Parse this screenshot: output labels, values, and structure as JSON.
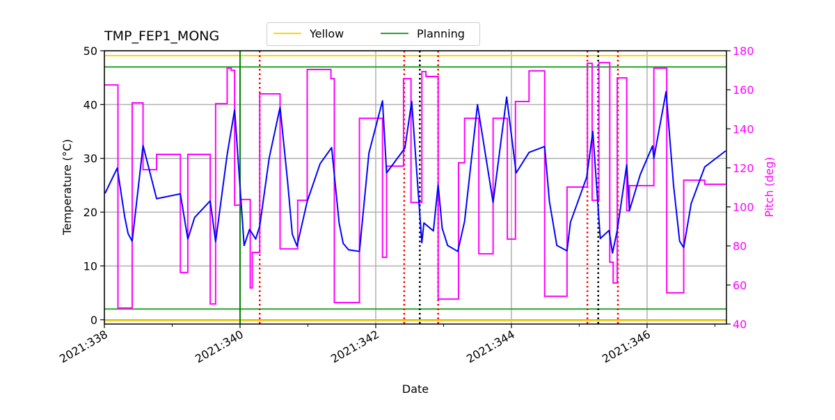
{
  "chart_data": {
    "type": "line",
    "title": "TMP_FEP1_MONG",
    "xlabel": "Date",
    "ylabel": "Temperature (°C)",
    "y2label": "Pitch (deg)",
    "xlim": [
      338.0,
      347.17
    ],
    "ylim": [
      -0.8,
      50
    ],
    "y2lim": [
      40,
      180
    ],
    "xticks": [
      338,
      340,
      342,
      344,
      346
    ],
    "xtick_labels": [
      "2021:338",
      "2021:340",
      "2021:342",
      "2021:344",
      "2021:346"
    ],
    "xminor_ticks": [
      339,
      341,
      343,
      345,
      347
    ],
    "yticks": [
      0,
      10,
      20,
      30,
      40,
      50
    ],
    "ytick_labels": [
      "0",
      "10",
      "20",
      "30",
      "40",
      "50"
    ],
    "y2ticks": [
      40,
      60,
      80,
      100,
      120,
      140,
      160,
      180
    ],
    "y2tick_labels": [
      "40",
      "60",
      "80",
      "100",
      "120",
      "140",
      "160",
      "180"
    ],
    "grid": true,
    "legend": {
      "placement": "top-center",
      "entries": [
        {
          "label": "Yellow",
          "color": "#ffd700"
        },
        {
          "label": "Planning",
          "color": "#2ca02c"
        }
      ]
    },
    "limits": {
      "yellow": [
        49.1,
        -0.2
      ],
      "planning": [
        47.0,
        2.0
      ]
    },
    "colors": {
      "temperature": "#0000ff",
      "pitch": "#ff00ff",
      "yellow": "#ffd700",
      "planning": "#2ca02c",
      "now_line": "#008000",
      "red_events": "#ff0000",
      "black_events": "#000000",
      "grid": "#b0b0b0"
    },
    "now_line_x": 340.0,
    "red_event_lines_x": [
      340.29,
      342.42,
      342.92,
      345.12,
      345.57
    ],
    "black_event_lines_x": [
      342.65,
      345.28
    ],
    "temperature_series": [
      [
        338.01,
        23.5
      ],
      [
        338.19,
        28.2
      ],
      [
        338.3,
        19.1
      ],
      [
        338.35,
        16.0
      ],
      [
        338.41,
        14.6
      ],
      [
        338.57,
        32.4
      ],
      [
        338.77,
        22.5
      ],
      [
        339.12,
        23.4
      ],
      [
        339.23,
        15.0
      ],
      [
        339.33,
        19.0
      ],
      [
        339.56,
        22.1
      ],
      [
        339.64,
        14.5
      ],
      [
        339.81,
        30.7
      ],
      [
        339.92,
        39.0
      ],
      [
        340.06,
        13.8
      ],
      [
        340.14,
        16.8
      ],
      [
        340.23,
        15.0
      ],
      [
        340.29,
        17.4
      ],
      [
        340.43,
        30.1
      ],
      [
        340.59,
        39.5
      ],
      [
        340.7,
        25.8
      ],
      [
        340.77,
        15.9
      ],
      [
        340.84,
        13.7
      ],
      [
        340.99,
        22.0
      ],
      [
        341.18,
        29.0
      ],
      [
        341.35,
        32.0
      ],
      [
        341.46,
        18.0
      ],
      [
        341.52,
        14.2
      ],
      [
        341.6,
        13.0
      ],
      [
        341.76,
        12.7
      ],
      [
        341.9,
        31.0
      ],
      [
        342.1,
        40.7
      ],
      [
        342.16,
        27.3
      ],
      [
        342.43,
        31.9
      ],
      [
        342.53,
        40.6
      ],
      [
        342.68,
        14.3
      ],
      [
        342.71,
        18.0
      ],
      [
        342.85,
        16.5
      ],
      [
        342.92,
        25.1
      ],
      [
        342.98,
        17.0
      ],
      [
        343.06,
        13.8
      ],
      [
        343.21,
        12.7
      ],
      [
        343.31,
        18.3
      ],
      [
        343.5,
        40.0
      ],
      [
        343.73,
        21.8
      ],
      [
        343.93,
        41.4
      ],
      [
        344.07,
        27.3
      ],
      [
        344.26,
        31.1
      ],
      [
        344.49,
        32.2
      ],
      [
        344.56,
        22.0
      ],
      [
        344.67,
        13.8
      ],
      [
        344.82,
        12.8
      ],
      [
        344.87,
        18.1
      ],
      [
        345.11,
        26.5
      ],
      [
        345.2,
        35.0
      ],
      [
        345.31,
        15.1
      ],
      [
        345.44,
        16.6
      ],
      [
        345.49,
        12.4
      ],
      [
        345.56,
        16.6
      ],
      [
        345.7,
        28.8
      ],
      [
        345.74,
        20.3
      ],
      [
        345.9,
        27.0
      ],
      [
        346.08,
        32.3
      ],
      [
        346.1,
        30.0
      ],
      [
        346.28,
        42.4
      ],
      [
        346.39,
        25.0
      ],
      [
        346.48,
        14.6
      ],
      [
        346.54,
        13.4
      ],
      [
        346.65,
        21.6
      ],
      [
        346.85,
        28.4
      ],
      [
        347.16,
        31.4
      ]
    ],
    "pitch_steps": [
      [
        338.0,
        162.5
      ],
      [
        338.2,
        48.2
      ],
      [
        338.41,
        153.3
      ],
      [
        338.57,
        119.1
      ],
      [
        338.77,
        126.9
      ],
      [
        339.12,
        66.4
      ],
      [
        339.23,
        126.9
      ],
      [
        339.56,
        50.3
      ],
      [
        339.64,
        152.9
      ],
      [
        339.81,
        171.1
      ],
      [
        339.87,
        170.0
      ],
      [
        339.92,
        100.9
      ],
      [
        340.0,
        103.8
      ],
      [
        340.15,
        58.5
      ],
      [
        340.18,
        76.7
      ],
      [
        340.29,
        157.9
      ],
      [
        340.59,
        78.5
      ],
      [
        340.85,
        103.4
      ],
      [
        340.99,
        170.4
      ],
      [
        341.34,
        165.7
      ],
      [
        341.39,
        51.0
      ],
      [
        341.76,
        145.4
      ],
      [
        342.1,
        74.2
      ],
      [
        342.16,
        120.9
      ],
      [
        342.41,
        165.7
      ],
      [
        342.52,
        102.3
      ],
      [
        342.68,
        169.3
      ],
      [
        342.74,
        166.8
      ],
      [
        342.92,
        52.8
      ],
      [
        343.22,
        122.6
      ],
      [
        343.31,
        145.4
      ],
      [
        343.52,
        76.0
      ],
      [
        343.73,
        145.4
      ],
      [
        343.94,
        83.5
      ],
      [
        344.06,
        154.0
      ],
      [
        344.26,
        169.7
      ],
      [
        344.49,
        54.2
      ],
      [
        344.82,
        110.2
      ],
      [
        345.12,
        173.6
      ],
      [
        345.19,
        103.4
      ],
      [
        345.29,
        173.9
      ],
      [
        345.45,
        71.7
      ],
      [
        345.5,
        61.0
      ],
      [
        345.56,
        166.1
      ],
      [
        345.7,
        98.1
      ],
      [
        345.74,
        110.9
      ],
      [
        346.1,
        171.1
      ],
      [
        346.29,
        56.0
      ],
      [
        346.54,
        113.7
      ],
      [
        346.85,
        111.6
      ],
      [
        347.16,
        111.6
      ]
    ]
  }
}
